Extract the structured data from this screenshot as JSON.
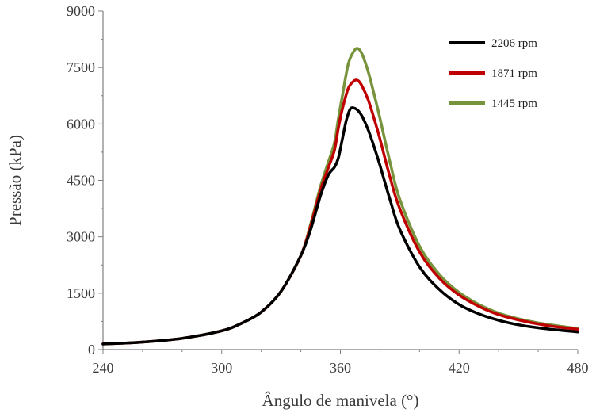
{
  "chart_data": {
    "type": "line",
    "title": "",
    "xlabel": "Ângulo de manivela (°)",
    "ylabel": "Pressão (kPa)",
    "xlim": [
      240,
      480
    ],
    "ylim": [
      0,
      9000
    ],
    "x_ticks": [
      240,
      300,
      360,
      420,
      480
    ],
    "y_ticks": [
      0,
      1500,
      3000,
      4500,
      6000,
      7500,
      9000
    ],
    "x_tick_labels": [
      "240",
      "300",
      "360",
      "420",
      "480"
    ],
    "y_tick_labels": [
      "0",
      "1500",
      "3000",
      "4500",
      "6000",
      "7500",
      "9000"
    ],
    "grid": false,
    "legend_position": "top-right",
    "series": [
      {
        "name": "2206 rpm",
        "color": "#000000",
        "points": [
          [
            240,
            150
          ],
          [
            260,
            200
          ],
          [
            280,
            300
          ],
          [
            300,
            500
          ],
          [
            310,
            700
          ],
          [
            320,
            1000
          ],
          [
            330,
            1550
          ],
          [
            340,
            2500
          ],
          [
            345,
            3200
          ],
          [
            350,
            4100
          ],
          [
            354,
            4650
          ],
          [
            357,
            4850
          ],
          [
            359,
            5100
          ],
          [
            361,
            5600
          ],
          [
            363,
            6100
          ],
          [
            365,
            6400
          ],
          [
            367,
            6420
          ],
          [
            369,
            6350
          ],
          [
            371,
            6200
          ],
          [
            374,
            5850
          ],
          [
            377,
            5400
          ],
          [
            380,
            4900
          ],
          [
            385,
            4000
          ],
          [
            390,
            3200
          ],
          [
            400,
            2200
          ],
          [
            410,
            1600
          ],
          [
            420,
            1200
          ],
          [
            430,
            950
          ],
          [
            440,
            780
          ],
          [
            450,
            660
          ],
          [
            460,
            580
          ],
          [
            470,
            520
          ],
          [
            480,
            470
          ]
        ]
      },
      {
        "name": "1871 rpm",
        "color": "#c00000",
        "points": [
          [
            240,
            150
          ],
          [
            260,
            200
          ],
          [
            280,
            300
          ],
          [
            300,
            500
          ],
          [
            310,
            700
          ],
          [
            320,
            1000
          ],
          [
            330,
            1550
          ],
          [
            340,
            2500
          ],
          [
            345,
            3300
          ],
          [
            350,
            4250
          ],
          [
            354,
            4850
          ],
          [
            357,
            5300
          ],
          [
            359,
            5900
          ],
          [
            361,
            6400
          ],
          [
            364,
            6950
          ],
          [
            367,
            7150
          ],
          [
            369,
            7150
          ],
          [
            371,
            7000
          ],
          [
            374,
            6650
          ],
          [
            377,
            6150
          ],
          [
            380,
            5600
          ],
          [
            385,
            4600
          ],
          [
            390,
            3750
          ],
          [
            400,
            2600
          ],
          [
            410,
            1900
          ],
          [
            420,
            1450
          ],
          [
            430,
            1150
          ],
          [
            440,
            930
          ],
          [
            450,
            790
          ],
          [
            460,
            680
          ],
          [
            470,
            600
          ],
          [
            480,
            540
          ]
        ]
      },
      {
        "name": "1445 rpm",
        "color": "#77933c",
        "points": [
          [
            240,
            150
          ],
          [
            260,
            200
          ],
          [
            280,
            300
          ],
          [
            300,
            500
          ],
          [
            310,
            700
          ],
          [
            320,
            1000
          ],
          [
            330,
            1550
          ],
          [
            340,
            2500
          ],
          [
            345,
            3350
          ],
          [
            350,
            4350
          ],
          [
            354,
            5000
          ],
          [
            357,
            5500
          ],
          [
            359,
            6150
          ],
          [
            361,
            6750
          ],
          [
            364,
            7600
          ],
          [
            367,
            7950
          ],
          [
            369,
            8000
          ],
          [
            371,
            7850
          ],
          [
            374,
            7400
          ],
          [
            377,
            6800
          ],
          [
            380,
            6150
          ],
          [
            385,
            5000
          ],
          [
            390,
            4000
          ],
          [
            400,
            2750
          ],
          [
            410,
            2000
          ],
          [
            420,
            1520
          ],
          [
            430,
            1200
          ],
          [
            440,
            970
          ],
          [
            450,
            820
          ],
          [
            460,
            710
          ],
          [
            470,
            630
          ],
          [
            480,
            560
          ]
        ]
      }
    ]
  }
}
